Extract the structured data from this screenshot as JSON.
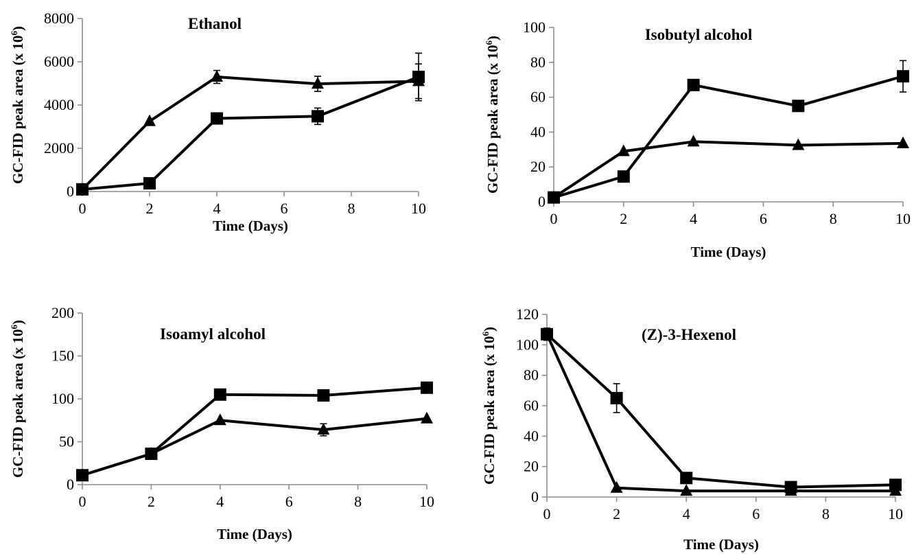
{
  "chart_data": [
    {
      "type": "line",
      "title": "Ethanol",
      "xlabel": "Time (Days)",
      "ylabel": "GC-FID peak area (x 10",
      "ylabel_sup": "6",
      "ylabel_close": ")",
      "x": [
        0,
        2,
        4,
        7,
        10
      ],
      "xlim": [
        0,
        10
      ],
      "ylim": [
        0,
        8000
      ],
      "xticks": [
        "0",
        "2",
        "4",
        "6",
        "8",
        "10"
      ],
      "yticks": [
        "0",
        "2000",
        "4000",
        "6000",
        "8000"
      ],
      "grid": false,
      "series": [
        {
          "marker": "triangle",
          "values": [
            100,
            3250,
            5300,
            4980,
            5100
          ],
          "errors": [
            0,
            0,
            300,
            350,
            800
          ]
        },
        {
          "marker": "square",
          "values": [
            100,
            380,
            3380,
            3480,
            5300
          ],
          "errors": [
            0,
            0,
            0,
            380,
            1100
          ]
        }
      ]
    },
    {
      "type": "line",
      "title": "Isobutyl alcohol",
      "xlabel": "Time (Days)",
      "ylabel": "GC-FID peak area (x 10",
      "ylabel_sup": "6",
      "ylabel_close": ")",
      "x": [
        0,
        2,
        4,
        7,
        10
      ],
      "xlim": [
        0,
        10
      ],
      "ylim": [
        0,
        100
      ],
      "xticks": [
        "0",
        "2",
        "4",
        "6",
        "8",
        "10"
      ],
      "yticks": [
        "0",
        "20",
        "40",
        "60",
        "80",
        "100"
      ],
      "grid": false,
      "series": [
        {
          "marker": "triangle",
          "values": [
            2.5,
            29,
            34.5,
            32.5,
            33.5
          ],
          "errors": [
            0,
            0,
            0,
            0,
            0
          ]
        },
        {
          "marker": "square",
          "values": [
            2.5,
            14.5,
            67,
            55,
            72
          ],
          "errors": [
            0,
            0,
            0,
            0,
            9
          ]
        }
      ]
    },
    {
      "type": "line",
      "title": "Isoamyl alcohol",
      "xlabel": "Time (Days)",
      "ylabel": "GC-FID peak area (x 10",
      "ylabel_sup": "6",
      "ylabel_close": ")",
      "x": [
        0,
        2,
        4,
        7,
        10
      ],
      "xlim": [
        0,
        10
      ],
      "ylim": [
        0,
        200
      ],
      "xticks": [
        "0",
        "2",
        "4",
        "6",
        "8",
        "10"
      ],
      "yticks": [
        "0",
        "50",
        "100",
        "150",
        "200"
      ],
      "grid": false,
      "series": [
        {
          "marker": "triangle",
          "values": [
            11,
            36,
            75,
            64,
            77
          ],
          "errors": [
            0,
            0,
            0,
            7,
            0
          ]
        },
        {
          "marker": "square",
          "values": [
            11,
            36,
            105,
            104,
            113
          ],
          "errors": [
            0,
            0,
            0,
            0,
            0
          ]
        }
      ]
    },
    {
      "type": "line",
      "title": "(Z)-3-Hexenol",
      "xlabel": "Time (Days)",
      "ylabel": "GC-FID peak area (x 10",
      "ylabel_sup": "6",
      "ylabel_close": ")",
      "x": [
        0,
        2,
        4,
        7,
        10
      ],
      "xlim": [
        0,
        10
      ],
      "ylim": [
        0,
        120
      ],
      "xticks": [
        "0",
        "2",
        "4",
        "6",
        "8",
        "10"
      ],
      "yticks": [
        "0",
        "20",
        "40",
        "60",
        "80",
        "100",
        "120"
      ],
      "grid": false,
      "series": [
        {
          "marker": "triangle",
          "values": [
            107,
            6,
            4,
            4,
            4
          ],
          "errors": [
            0,
            0,
            0,
            0,
            0
          ]
        },
        {
          "marker": "square",
          "values": [
            107,
            65,
            12.5,
            6.5,
            8
          ],
          "errors": [
            4,
            9.5,
            0,
            0,
            0
          ]
        }
      ]
    }
  ]
}
